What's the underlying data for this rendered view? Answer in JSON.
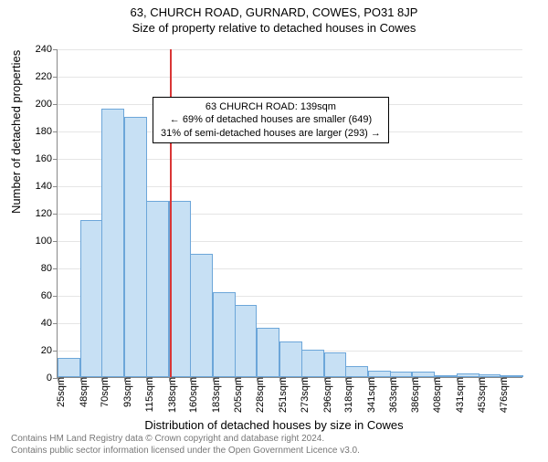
{
  "title": "63, CHURCH ROAD, GURNARD, COWES, PO31 8JP",
  "subtitle": "Size of property relative to detached houses in Cowes",
  "chart": {
    "type": "histogram",
    "y_label": "Number of detached properties",
    "x_label": "Distribution of detached houses by size in Cowes",
    "bar_fill": "#c7e0f4",
    "bar_stroke": "#6ca6d9",
    "grid_color": "#e5e5e5",
    "background": "#ffffff",
    "ref_line_color": "#d93636",
    "ref_value_x": 139,
    "ylim": [
      0,
      240
    ],
    "ytick_step": 20,
    "x_ticks": [
      25,
      48,
      70,
      93,
      115,
      138,
      160,
      183,
      205,
      228,
      251,
      273,
      296,
      318,
      341,
      363,
      386,
      408,
      431,
      453,
      476
    ],
    "x_tick_unit": "sqm",
    "values": [
      14,
      115,
      196,
      190,
      129,
      129,
      90,
      62,
      53,
      36,
      26,
      20,
      18,
      8,
      5,
      4,
      4,
      0,
      3,
      2,
      1
    ]
  },
  "annotation": {
    "line1": "63 CHURCH ROAD: 139sqm",
    "line2": "← 69% of detached houses are smaller (649)",
    "line3": "31% of semi-detached houses are larger (293) →"
  },
  "footer": {
    "line1": "Contains HM Land Registry data © Crown copyright and database right 2024.",
    "line2": "Contains public sector information licensed under the Open Government Licence v3.0."
  }
}
